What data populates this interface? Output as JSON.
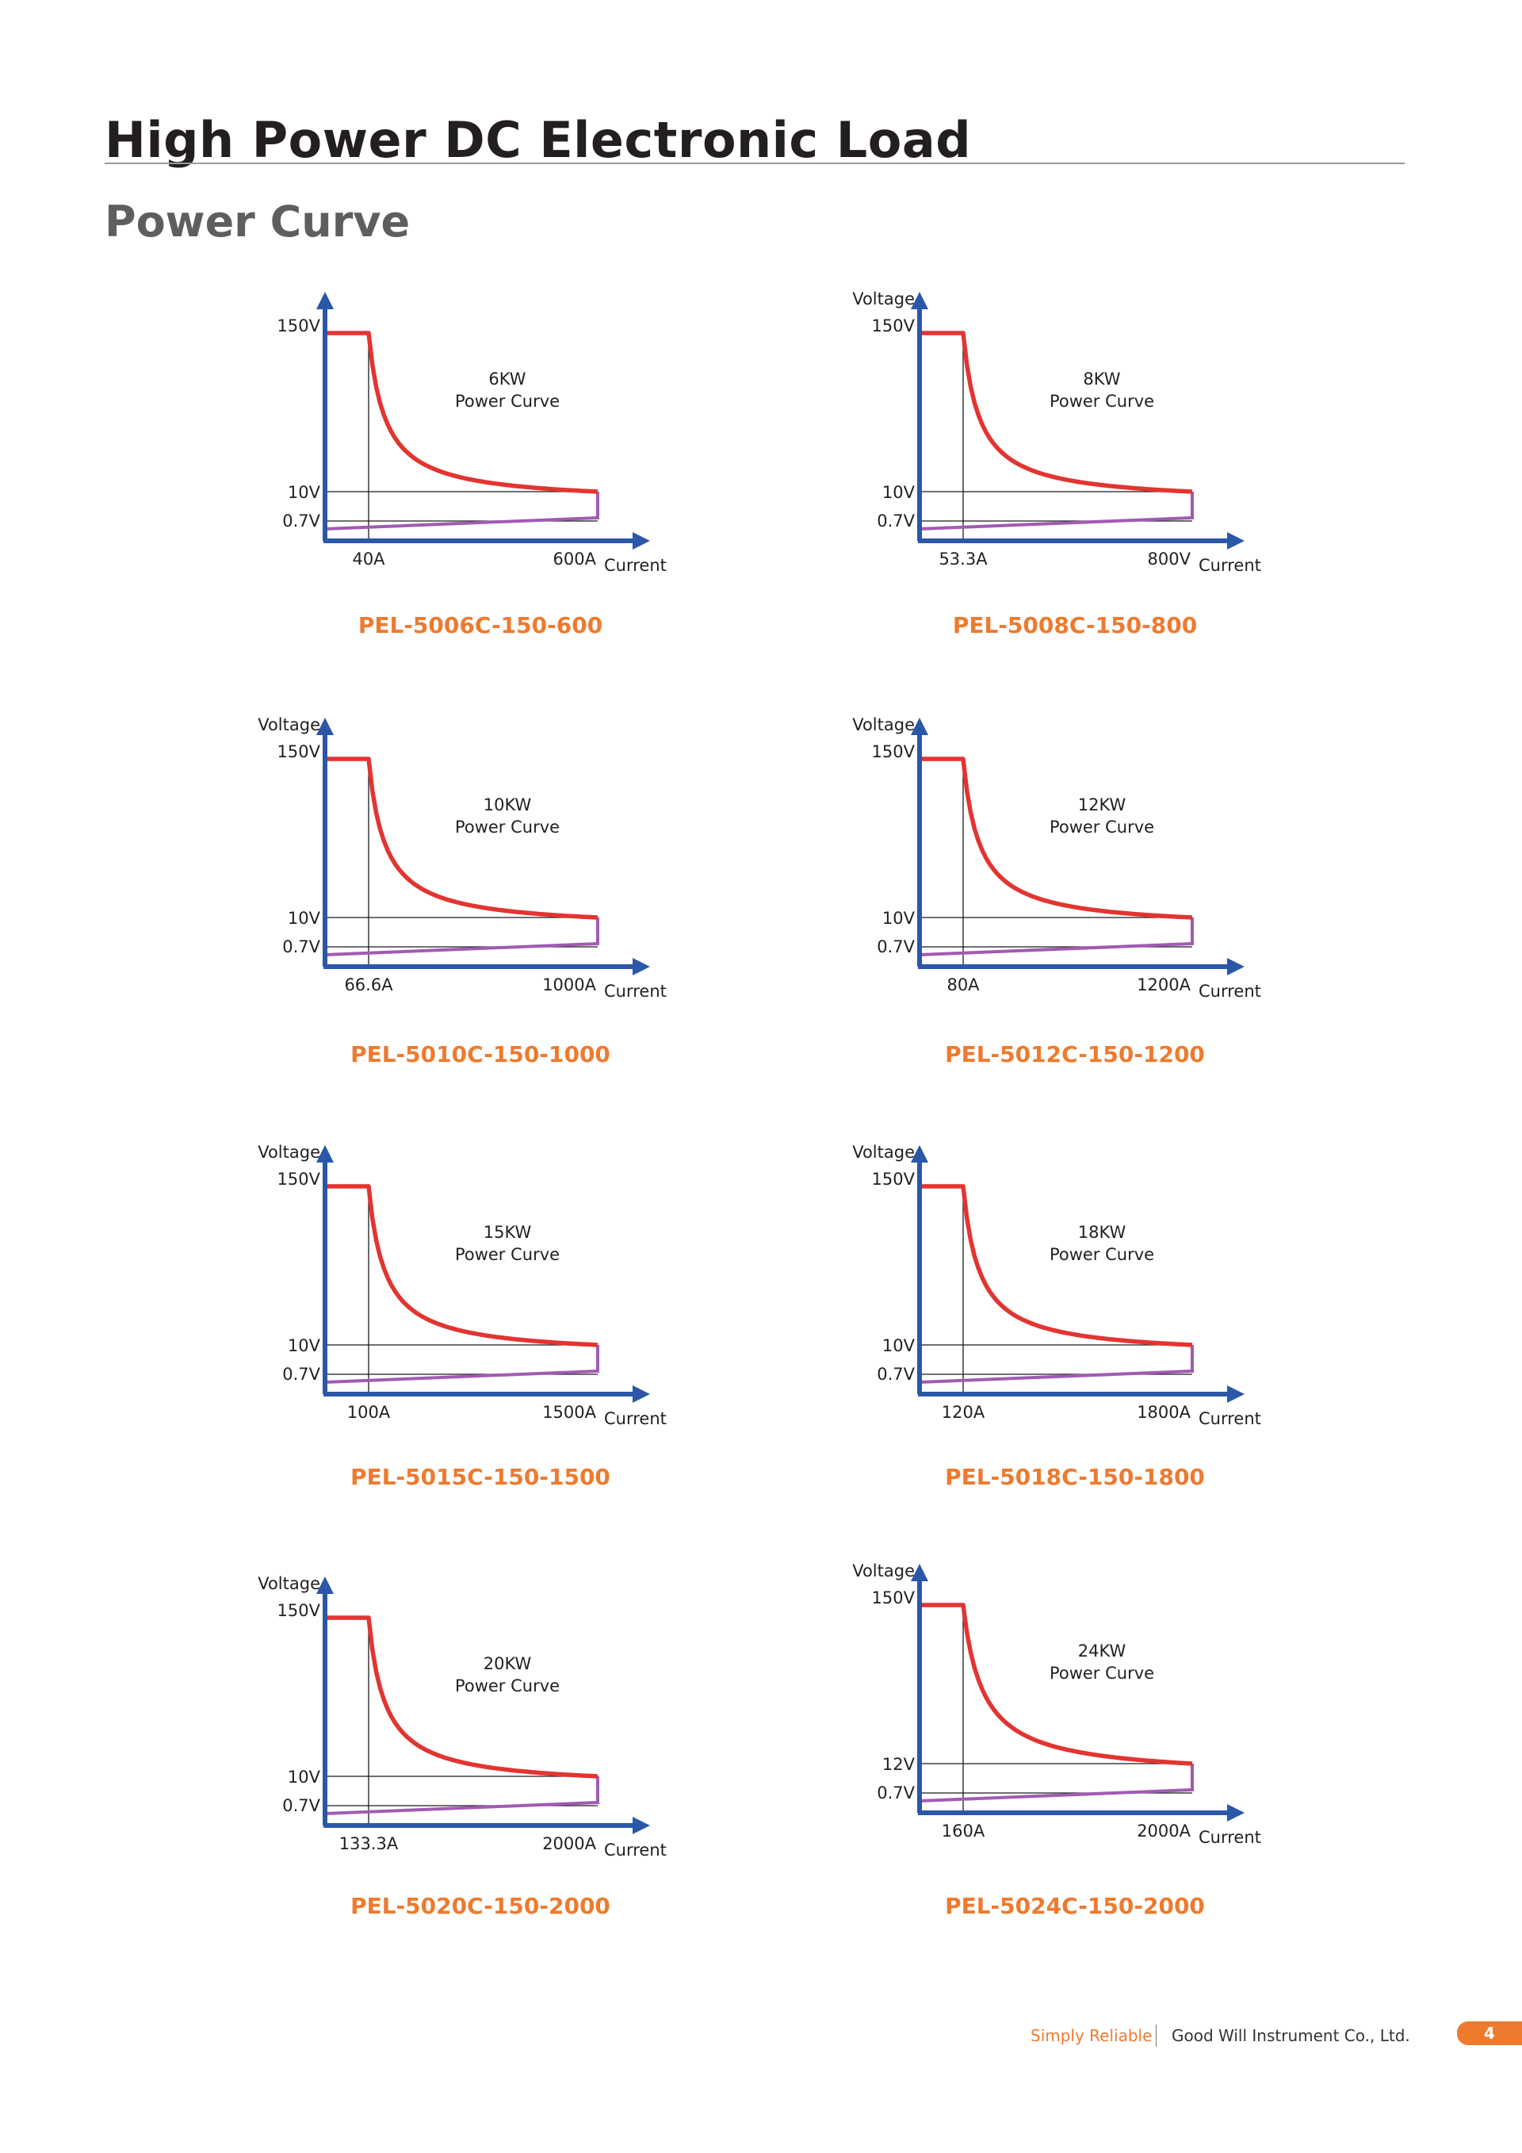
{
  "page": {
    "title": "High Power DC Electronic Load",
    "subtitle": "Power Curve"
  },
  "footer": {
    "slogan": "Simply Reliable",
    "company": "Good Will Instrument Co., Ltd.",
    "page_number": "4"
  },
  "colors": {
    "curve": "#e23531",
    "axis": "#2a57a8",
    "low_line": "#a25ab3",
    "model_label": "#ee7a2e"
  },
  "chart_data": [
    {
      "type": "line",
      "model": "PEL-5006C-150-600",
      "title": "6KW",
      "title2": "Power Curve",
      "ylabel": "",
      "xlabel": "Current",
      "v_max_label": "150V",
      "v_knee_label": "10V",
      "v_min_label": "0.7V",
      "i_knee_label": "40A",
      "i_max_label": "600A",
      "power_kw": 6,
      "v_max": 150,
      "v_knee": 10,
      "v_min": 0.7,
      "i_knee": 40,
      "i_max": 600
    },
    {
      "type": "line",
      "model": "PEL-5008C-150-800",
      "title": "8KW",
      "title2": "Power Curve",
      "ylabel": "Voltage",
      "xlabel": "Current",
      "v_max_label": "150V",
      "v_knee_label": "10V",
      "v_min_label": "0.7V",
      "i_knee_label": "53.3A",
      "i_max_label": "800V",
      "power_kw": 8,
      "v_max": 150,
      "v_knee": 10,
      "v_min": 0.7,
      "i_knee": 53.3,
      "i_max": 800
    },
    {
      "type": "line",
      "model": "PEL-5010C-150-1000",
      "title": "10KW",
      "title2": "Power Curve",
      "ylabel": "Voltage",
      "xlabel": "Current",
      "v_max_label": "150V",
      "v_knee_label": "10V",
      "v_min_label": "0.7V",
      "i_knee_label": "66.6A",
      "i_max_label": "1000A",
      "power_kw": 10,
      "v_max": 150,
      "v_knee": 10,
      "v_min": 0.7,
      "i_knee": 66.6,
      "i_max": 1000
    },
    {
      "type": "line",
      "model": "PEL-5012C-150-1200",
      "title": "12KW",
      "title2": "Power Curve",
      "ylabel": "Voltage",
      "xlabel": "Current",
      "v_max_label": "150V",
      "v_knee_label": "10V",
      "v_min_label": "0.7V",
      "i_knee_label": "80A",
      "i_max_label": "1200A",
      "power_kw": 12,
      "v_max": 150,
      "v_knee": 10,
      "v_min": 0.7,
      "i_knee": 80,
      "i_max": 1200
    },
    {
      "type": "line",
      "model": "PEL-5015C-150-1500",
      "title": "15KW",
      "title2": "Power Curve",
      "ylabel": "Voltage",
      "xlabel": "Current",
      "v_max_label": "150V",
      "v_knee_label": "10V",
      "v_min_label": "0.7V",
      "i_knee_label": "100A",
      "i_max_label": "1500A",
      "power_kw": 15,
      "v_max": 150,
      "v_knee": 10,
      "v_min": 0.7,
      "i_knee": 100,
      "i_max": 1500
    },
    {
      "type": "line",
      "model": "PEL-5018C-150-1800",
      "title": "18KW",
      "title2": "Power Curve",
      "ylabel": "Voltage",
      "xlabel": "Current",
      "v_max_label": "150V",
      "v_knee_label": "10V",
      "v_min_label": "0.7V",
      "i_knee_label": "120A",
      "i_max_label": "1800A",
      "power_kw": 18,
      "v_max": 150,
      "v_knee": 10,
      "v_min": 0.7,
      "i_knee": 120,
      "i_max": 1800
    },
    {
      "type": "line",
      "model": "PEL-5020C-150-2000",
      "title": "20KW",
      "title2": "Power Curve",
      "ylabel": "Voltage",
      "xlabel": "Current",
      "v_max_label": "150V",
      "v_knee_label": "10V",
      "v_min_label": "0.7V",
      "i_knee_label": "133.3A",
      "i_max_label": "2000A",
      "power_kw": 20,
      "v_max": 150,
      "v_knee": 10,
      "v_min": 0.7,
      "i_knee": 133.3,
      "i_max": 2000
    },
    {
      "type": "line",
      "model": "PEL-5024C-150-2000",
      "title": "24KW",
      "title2": "Power Curve",
      "ylabel": "Voltage",
      "xlabel": "Current",
      "v_max_label": "150V",
      "v_knee_label": "12V",
      "v_min_label": "0.7V",
      "i_knee_label": "160A",
      "i_max_label": "2000A",
      "power_kw": 24,
      "v_max": 150,
      "v_knee": 12,
      "v_min": 0.7,
      "i_knee": 160,
      "i_max": 2000
    }
  ]
}
